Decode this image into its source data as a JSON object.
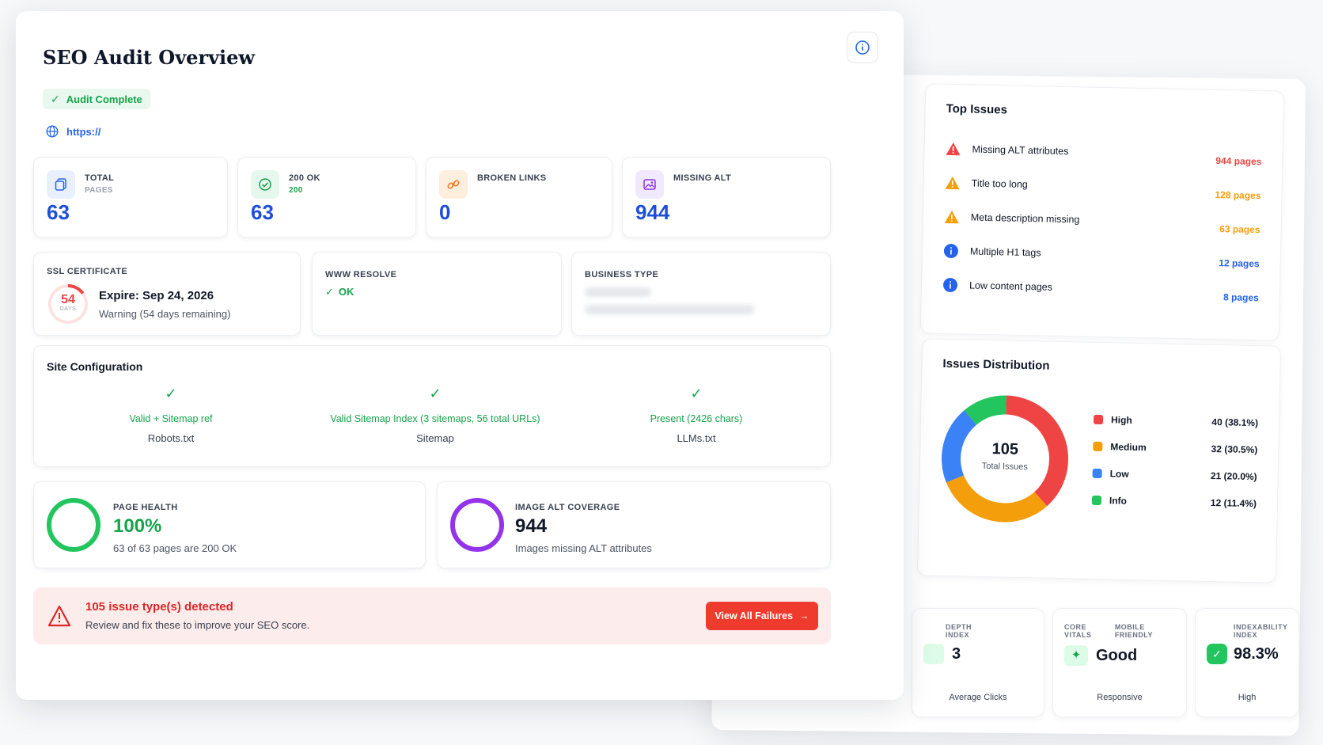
{
  "header": {
    "title": "SEO Audit Overview",
    "status_badge": "Audit Complete",
    "url": "https://"
  },
  "stats": [
    {
      "label": "TOTAL",
      "sub": "PAGES",
      "value": "63"
    },
    {
      "label": "200 OK",
      "sub": "200",
      "value": "63"
    },
    {
      "label": "BROKEN LINKS",
      "sub": "",
      "value": "0"
    },
    {
      "label": "MISSING ALT",
      "sub": "",
      "value": "944"
    }
  ],
  "ssl": {
    "label": "SSL CERTIFICATE",
    "days": "54",
    "days_unit": "DAYS",
    "expire": "Expire: Sep 24, 2026",
    "warning": "Warning (54 days remaining)",
    "days_fraction": 0.15
  },
  "www": {
    "label": "WWW RESOLVE",
    "value": "OK"
  },
  "business": {
    "label": "BUSINESS TYPE"
  },
  "site_config": {
    "title": "Site Configuration",
    "items": [
      {
        "status": "Valid + Sitemap ref",
        "label": "Robots.txt"
      },
      {
        "status": "Valid Sitemap Index (3 sitemaps, 56 total URLs)",
        "label": "Sitemap"
      },
      {
        "status": "Present (2426 chars)",
        "label": "LLMs.txt"
      }
    ]
  },
  "page_health": {
    "label": "PAGE HEALTH",
    "value": "100%",
    "desc": "63 of 63 pages are 200 OK",
    "fraction": 1.0
  },
  "image_alt": {
    "label": "IMAGE ALT COVERAGE",
    "value": "944",
    "desc": "Images missing ALT attributes"
  },
  "alert": {
    "title": "105 issue type(s) detected",
    "desc": "Review and fix these to improve your SEO score.",
    "button": "View All Failures"
  },
  "top_issues": {
    "title": "Top Issues",
    "items": [
      {
        "name": "Missing ALT attributes",
        "count": "944 pages",
        "severity": "high"
      },
      {
        "name": "Title too long",
        "count": "128 pages",
        "severity": "medium"
      },
      {
        "name": "Meta description missing",
        "count": "63 pages",
        "severity": "medium"
      },
      {
        "name": "Multiple H1 tags",
        "count": "12 pages",
        "severity": "low"
      },
      {
        "name": "Low content pages",
        "count": "8 pages",
        "severity": "low"
      }
    ]
  },
  "issues_distribution": {
    "title": "Issues Distribution",
    "total": "105",
    "total_label": "Total Issues",
    "segments": [
      {
        "name": "High",
        "value": "40 (38.1%)",
        "count": 40,
        "color": "#ef4444"
      },
      {
        "name": "Medium",
        "value": "32 (30.5%)",
        "count": 32,
        "color": "#f59e0b"
      },
      {
        "name": "Low",
        "value": "21 (20.0%)",
        "count": 21,
        "color": "#3b82f6"
      },
      {
        "name": "Info",
        "value": "12 (11.4%)",
        "count": 12,
        "color": "#22c55e"
      }
    ]
  },
  "mini_cards": [
    {
      "labels": [
        "DEPTH",
        "INDEX"
      ],
      "value": "3",
      "foot": "Average Clicks"
    },
    {
      "labels": [
        "CORE VITALS",
        "MOBILE FRIENDLY"
      ],
      "value": "Good",
      "foot": "Responsive"
    },
    {
      "labels": [
        "INDEXABILITY",
        "INDEX"
      ],
      "value": "98.3%",
      "foot": "High"
    }
  ]
}
